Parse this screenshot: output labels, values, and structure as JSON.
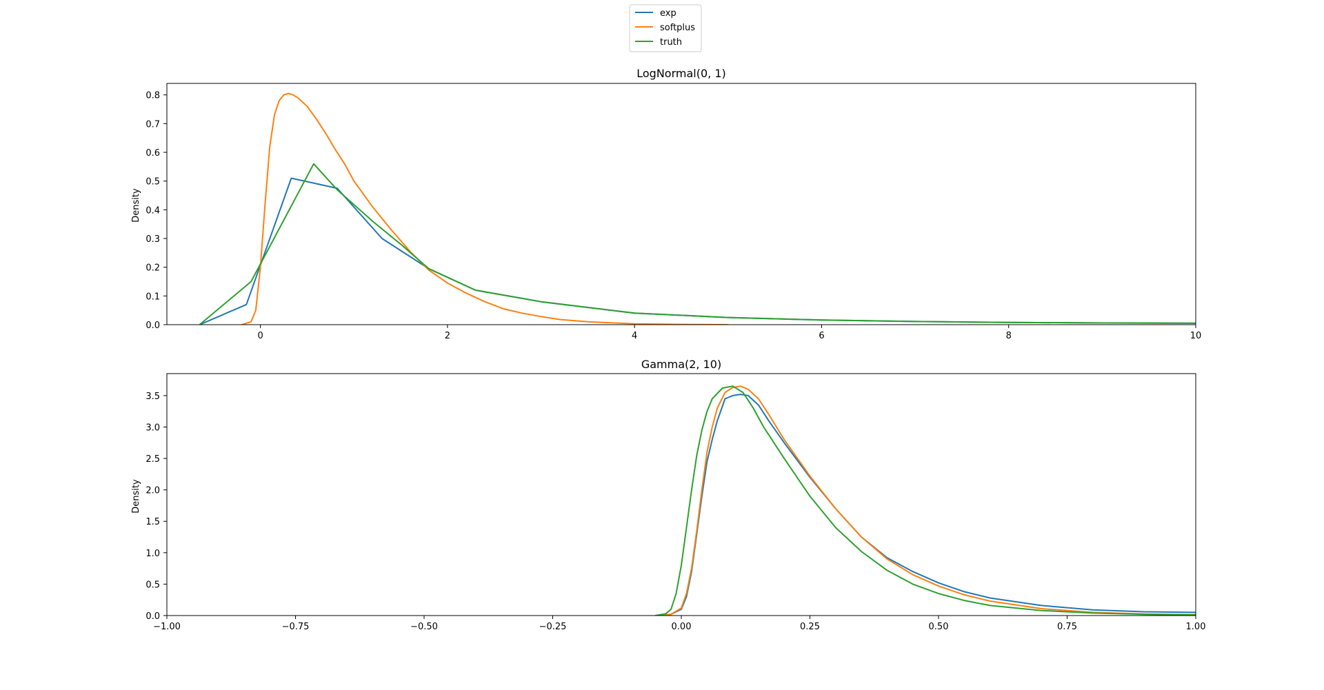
{
  "legend": {
    "entries": [
      {
        "label": "exp",
        "color": "#1f77b4"
      },
      {
        "label": "softplus",
        "color": "#ff7f0e"
      },
      {
        "label": "truth",
        "color": "#2ca02c"
      }
    ],
    "placement": "top-center"
  },
  "chart_data": [
    {
      "type": "line",
      "title": "LogNormal(0, 1)",
      "xlabel": "",
      "ylabel": "Density",
      "xlim": [
        -1,
        10
      ],
      "ylim": [
        0,
        0.84
      ],
      "xticks": [
        0,
        2,
        4,
        6,
        8,
        10
      ],
      "xtick_labels": [
        "0",
        "2",
        "4",
        "6",
        "8",
        "10"
      ],
      "yticks": [
        0,
        0.1,
        0.2,
        0.3,
        0.4,
        0.5,
        0.6,
        0.7,
        0.8
      ],
      "ytick_labels": [
        "0.0",
        "0.1",
        "0.2",
        "0.3",
        "0.4",
        "0.5",
        "0.6",
        "0.7",
        "0.8"
      ],
      "grid": false,
      "series": [
        {
          "name": "exp",
          "color": "#1f77b4",
          "x": [
            -0.65,
            -0.15,
            0.33,
            0.82,
            1.3,
            1.8,
            2.3,
            3.0,
            4.0,
            5.0,
            6.0,
            7.0,
            8.0,
            9.0,
            10.0
          ],
          "y": [
            0.0,
            0.07,
            0.51,
            0.475,
            0.3,
            0.195,
            0.12,
            0.08,
            0.04,
            0.025,
            0.016,
            0.011,
            0.008,
            0.006,
            0.005
          ]
        },
        {
          "name": "softplus",
          "color": "#ff7f0e",
          "x": [
            -0.2,
            -0.1,
            -0.05,
            0.0,
            0.05,
            0.1,
            0.15,
            0.2,
            0.25,
            0.3,
            0.35,
            0.4,
            0.5,
            0.6,
            0.7,
            0.8,
            0.9,
            1.0,
            1.2,
            1.4,
            1.6,
            1.8,
            2.0,
            2.2,
            2.4,
            2.6,
            2.8,
            3.0,
            3.2,
            3.5,
            4.0,
            4.5,
            5.0
          ],
          "y": [
            0.0,
            0.01,
            0.05,
            0.2,
            0.42,
            0.62,
            0.73,
            0.78,
            0.8,
            0.805,
            0.8,
            0.79,
            0.76,
            0.715,
            0.665,
            0.61,
            0.56,
            0.5,
            0.41,
            0.33,
            0.255,
            0.19,
            0.145,
            0.11,
            0.08,
            0.055,
            0.04,
            0.028,
            0.018,
            0.01,
            0.003,
            0.001,
            0.0
          ]
        },
        {
          "name": "truth",
          "color": "#2ca02c",
          "x": [
            -0.65,
            -0.1,
            0.57,
            0.82,
            1.2,
            1.5,
            1.8,
            2.0,
            2.3,
            3.0,
            4.0,
            5.0,
            6.0,
            7.0,
            8.0,
            9.0,
            10.0
          ],
          "y": [
            0.0,
            0.15,
            0.56,
            0.47,
            0.36,
            0.28,
            0.195,
            0.165,
            0.12,
            0.08,
            0.04,
            0.025,
            0.016,
            0.011,
            0.008,
            0.006,
            0.005
          ]
        }
      ]
    },
    {
      "type": "line",
      "title": "Gamma(2, 10)",
      "xlabel": "",
      "ylabel": "Density",
      "xlim": [
        -1,
        1
      ],
      "ylim": [
        0,
        3.85
      ],
      "xticks": [
        -1.0,
        -0.75,
        -0.5,
        -0.25,
        0.0,
        0.25,
        0.5,
        0.75,
        1.0
      ],
      "xtick_labels": [
        "−1.00",
        "−0.75",
        "−0.50",
        "−0.25",
        "0.00",
        "0.25",
        "0.50",
        "0.75",
        "1.00"
      ],
      "yticks": [
        0,
        0.5,
        1.0,
        1.5,
        2.0,
        2.5,
        3.0,
        3.5
      ],
      "ytick_labels": [
        "0.0",
        "0.5",
        "1.0",
        "1.5",
        "2.0",
        "2.5",
        "3.0",
        "3.5"
      ],
      "grid": false,
      "series": [
        {
          "name": "exp",
          "color": "#1f77b4",
          "x": [
            -0.05,
            -0.02,
            0.0,
            0.01,
            0.02,
            0.03,
            0.04,
            0.05,
            0.06,
            0.07,
            0.085,
            0.1,
            0.115,
            0.13,
            0.15,
            0.17,
            0.2,
            0.25,
            0.3,
            0.35,
            0.4,
            0.45,
            0.5,
            0.55,
            0.6,
            0.7,
            0.8,
            0.9,
            1.0
          ],
          "y": [
            0.0,
            0.02,
            0.1,
            0.3,
            0.7,
            1.3,
            1.9,
            2.45,
            2.8,
            3.1,
            3.45,
            3.5,
            3.52,
            3.5,
            3.35,
            3.1,
            2.75,
            2.2,
            1.7,
            1.25,
            0.92,
            0.7,
            0.52,
            0.38,
            0.28,
            0.16,
            0.09,
            0.06,
            0.05
          ]
        },
        {
          "name": "softplus",
          "color": "#ff7f0e",
          "x": [
            -0.05,
            -0.02,
            0.0,
            0.01,
            0.02,
            0.03,
            0.04,
            0.05,
            0.06,
            0.07,
            0.085,
            0.1,
            0.115,
            0.13,
            0.15,
            0.17,
            0.2,
            0.25,
            0.3,
            0.35,
            0.4,
            0.45,
            0.5,
            0.55,
            0.6,
            0.7,
            0.8,
            0.9,
            1.0
          ],
          "y": [
            0.0,
            0.02,
            0.12,
            0.35,
            0.75,
            1.35,
            2.0,
            2.6,
            3.0,
            3.3,
            3.55,
            3.63,
            3.65,
            3.6,
            3.45,
            3.2,
            2.8,
            2.22,
            1.7,
            1.25,
            0.9,
            0.65,
            0.47,
            0.33,
            0.23,
            0.11,
            0.05,
            0.025,
            0.015
          ]
        },
        {
          "name": "truth",
          "color": "#2ca02c",
          "x": [
            -0.05,
            -0.03,
            -0.02,
            -0.01,
            0.0,
            0.01,
            0.02,
            0.03,
            0.04,
            0.05,
            0.06,
            0.08,
            0.1,
            0.12,
            0.14,
            0.16,
            0.2,
            0.25,
            0.3,
            0.35,
            0.4,
            0.45,
            0.5,
            0.55,
            0.6,
            0.7,
            0.8,
            0.9,
            1.0
          ],
          "y": [
            0.0,
            0.03,
            0.1,
            0.35,
            0.8,
            1.4,
            2.0,
            2.55,
            2.95,
            3.25,
            3.45,
            3.62,
            3.65,
            3.55,
            3.3,
            3.0,
            2.5,
            1.9,
            1.4,
            1.02,
            0.72,
            0.5,
            0.35,
            0.24,
            0.16,
            0.08,
            0.04,
            0.02,
            0.01
          ]
        }
      ]
    }
  ]
}
